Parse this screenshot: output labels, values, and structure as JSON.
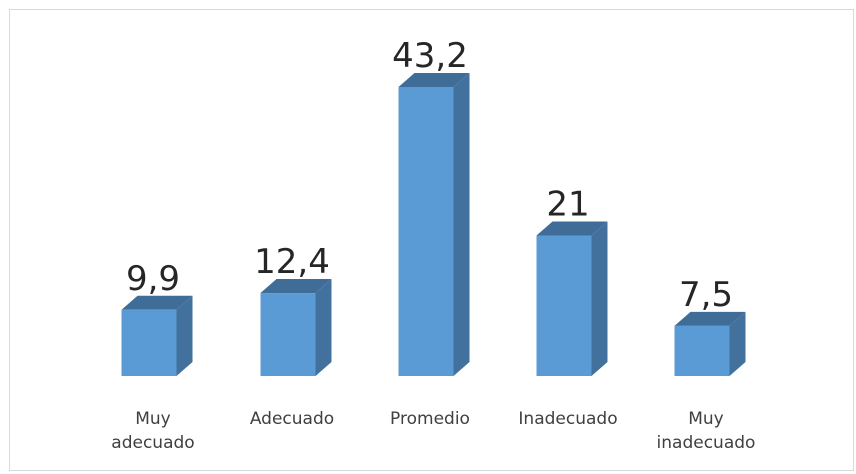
{
  "chart_data": {
    "type": "bar",
    "style": "3d-column",
    "categories": [
      [
        "Muy",
        "adecuado"
      ],
      [
        "Adecuado"
      ],
      [
        "Promedio"
      ],
      [
        "Inadecuado"
      ],
      [
        "Muy",
        "inadecuado"
      ]
    ],
    "values": [
      9.9,
      12.4,
      43.2,
      21,
      7.5
    ],
    "value_labels": [
      "9,9",
      "12,4",
      "43,2",
      "21",
      "7,5"
    ],
    "title": "",
    "xlabel": "",
    "ylabel": "",
    "ylim": [
      0,
      43.2
    ],
    "grid": false,
    "legend": "none",
    "colors": {
      "front": "#5b9bd5",
      "side": "#41719c",
      "top": "#3f6d98"
    }
  }
}
